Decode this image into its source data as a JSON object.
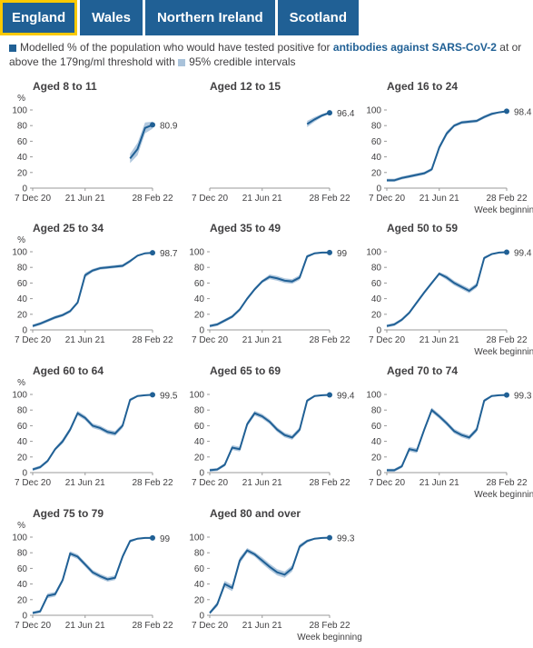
{
  "tabs": [
    "England",
    "Wales",
    "Northern Ireland",
    "Scotland"
  ],
  "legend": {
    "text1": "Modelled % of the population who would have tested positive for",
    "bold": "antibodies against SARS-CoV-2",
    "text2": "at or above the 179ng/ml threshold with",
    "band": "95% credible intervals"
  },
  "chart_data": [
    {
      "type": "line",
      "title": "Aged 8 to 11",
      "y_unit": "%",
      "x": [
        "7 Dec 20",
        "4 Jan 21",
        "1 Feb 21",
        "1 Mar 21",
        "29 Mar 21",
        "26 Apr 21",
        "24 May 21",
        "21 Jun 21",
        "19 Jul 21",
        "16 Aug 21",
        "13 Sep 21",
        "11 Oct 21",
        "8 Nov 21",
        "6 Dec 21",
        "3 Jan 22",
        "31 Jan 22",
        "28 Feb 22"
      ],
      "xticks": [
        "7 Dec 20",
        "21 Jun 21",
        "28 Feb 22"
      ],
      "values": [
        null,
        null,
        null,
        null,
        null,
        null,
        null,
        null,
        null,
        null,
        null,
        null,
        null,
        38,
        50,
        77,
        80.9
      ],
      "lower": [
        null,
        null,
        null,
        null,
        null,
        null,
        null,
        null,
        null,
        null,
        null,
        null,
        null,
        32,
        42,
        70,
        76
      ],
      "upper": [
        null,
        null,
        null,
        null,
        null,
        null,
        null,
        null,
        null,
        null,
        null,
        null,
        null,
        44,
        58,
        84,
        85
      ],
      "ylim": [
        0,
        100
      ],
      "yticks": [
        0,
        20,
        40,
        60,
        80,
        100
      ],
      "color": "#206095",
      "band_color": "#a9c2da"
    },
    {
      "type": "line",
      "title": "Aged 12 to 15",
      "x": [
        "7 Dec 20",
        "4 Jan 21",
        "1 Feb 21",
        "1 Mar 21",
        "29 Mar 21",
        "26 Apr 21",
        "24 May 21",
        "21 Jun 21",
        "19 Jul 21",
        "16 Aug 21",
        "13 Sep 21",
        "11 Oct 21",
        "8 Nov 21",
        "6 Dec 21",
        "3 Jan 22",
        "31 Jan 22",
        "28 Feb 22"
      ],
      "xticks": [
        "7 Dec 20",
        "21 Jun 21",
        "28 Feb 22"
      ],
      "values": [
        null,
        null,
        null,
        null,
        null,
        null,
        null,
        null,
        null,
        null,
        null,
        null,
        null,
        82,
        88,
        93,
        96.4
      ],
      "lower": [
        null,
        null,
        null,
        null,
        null,
        null,
        null,
        null,
        null,
        null,
        null,
        null,
        null,
        78,
        85,
        91,
        95
      ],
      "upper": [
        null,
        null,
        null,
        null,
        null,
        null,
        null,
        null,
        null,
        null,
        null,
        null,
        null,
        86,
        91,
        95,
        98
      ],
      "ylim": [
        0,
        100
      ],
      "color": "#206095",
      "band_color": "#a9c2da"
    },
    {
      "type": "line",
      "title": "Aged 16 to 24",
      "x_label": "Week beginning",
      "x": [
        "7 Dec 20",
        "4 Jan 21",
        "1 Feb 21",
        "1 Mar 21",
        "29 Mar 21",
        "26 Apr 21",
        "24 May 21",
        "21 Jun 21",
        "19 Jul 21",
        "16 Aug 21",
        "13 Sep 21",
        "11 Oct 21",
        "8 Nov 21",
        "6 Dec 21",
        "3 Jan 22",
        "31 Jan 22",
        "28 Feb 22"
      ],
      "xticks": [
        "7 Dec 20",
        "21 Jun 21",
        "28 Feb 22"
      ],
      "values": [
        10,
        10,
        13,
        15,
        17,
        19,
        24,
        52,
        70,
        80,
        84,
        85,
        86,
        91,
        95,
        97,
        98.4
      ],
      "lower": [
        8,
        8,
        11,
        13,
        15,
        17,
        22,
        49,
        67,
        78,
        82,
        83,
        84,
        89,
        93,
        96,
        97
      ],
      "upper": [
        12,
        12,
        15,
        17,
        19,
        21,
        26,
        55,
        73,
        82,
        86,
        87,
        88,
        93,
        97,
        98,
        99
      ],
      "ylim": [
        0,
        100
      ],
      "yticks": [
        0,
        20,
        40,
        60,
        80,
        100
      ],
      "color": "#206095",
      "band_color": "#a9c2da"
    },
    {
      "type": "line",
      "title": "Aged 25 to 34",
      "y_unit": "%",
      "x": [
        "7 Dec 20",
        "4 Jan 21",
        "1 Feb 21",
        "1 Mar 21",
        "29 Mar 21",
        "26 Apr 21",
        "24 May 21",
        "21 Jun 21",
        "19 Jul 21",
        "16 Aug 21",
        "13 Sep 21",
        "11 Oct 21",
        "8 Nov 21",
        "6 Dec 21",
        "3 Jan 22",
        "31 Jan 22",
        "28 Feb 22"
      ],
      "xticks": [
        "7 Dec 20",
        "21 Jun 21",
        "28 Feb 22"
      ],
      "values": [
        5,
        8,
        12,
        16,
        19,
        24,
        35,
        70,
        76,
        79,
        80,
        81,
        82,
        88,
        95,
        98,
        98.7
      ],
      "lower": [
        3,
        6,
        10,
        14,
        17,
        22,
        33,
        67,
        74,
        77,
        78,
        79,
        80,
        86,
        94,
        97,
        98
      ],
      "upper": [
        7,
        10,
        14,
        18,
        21,
        26,
        37,
        73,
        78,
        81,
        82,
        83,
        84,
        90,
        96,
        99,
        99
      ],
      "ylim": [
        0,
        100
      ],
      "yticks": [
        0,
        20,
        40,
        60,
        80,
        100
      ],
      "color": "#206095",
      "band_color": "#a9c2da"
    },
    {
      "type": "line",
      "title": "Aged 35 to 49",
      "x": [
        "7 Dec 20",
        "4 Jan 21",
        "1 Feb 21",
        "1 Mar 21",
        "29 Mar 21",
        "26 Apr 21",
        "24 May 21",
        "21 Jun 21",
        "19 Jul 21",
        "16 Aug 21",
        "13 Sep 21",
        "11 Oct 21",
        "8 Nov 21",
        "6 Dec 21",
        "3 Jan 22",
        "31 Jan 22",
        "28 Feb 22"
      ],
      "xticks": [
        "7 Dec 20",
        "21 Jun 21",
        "28 Feb 22"
      ],
      "values": [
        5,
        7,
        12,
        17,
        26,
        40,
        52,
        62,
        68,
        66,
        63,
        62,
        67,
        94,
        98,
        99,
        99.0
      ],
      "lower": [
        3,
        5,
        10,
        15,
        24,
        38,
        50,
        60,
        65,
        63,
        60,
        59,
        64,
        92,
        97,
        98,
        98
      ],
      "upper": [
        7,
        9,
        14,
        19,
        28,
        42,
        54,
        64,
        71,
        69,
        66,
        65,
        70,
        96,
        99,
        100,
        100
      ],
      "ylim": [
        0,
        100
      ],
      "yticks": [
        0,
        20,
        40,
        60,
        80,
        100
      ],
      "color": "#206095",
      "band_color": "#a9c2da"
    },
    {
      "type": "line",
      "title": "Aged 50 to 59",
      "x_label": "Week beginning",
      "x": [
        "7 Dec 20",
        "4 Jan 21",
        "1 Feb 21",
        "1 Mar 21",
        "29 Mar 21",
        "26 Apr 21",
        "24 May 21",
        "21 Jun 21",
        "19 Jul 21",
        "16 Aug 21",
        "13 Sep 21",
        "11 Oct 21",
        "8 Nov 21",
        "6 Dec 21",
        "3 Jan 22",
        "31 Jan 22",
        "28 Feb 22"
      ],
      "xticks": [
        "7 Dec 20",
        "21 Jun 21",
        "28 Feb 22"
      ],
      "values": [
        5,
        7,
        13,
        22,
        35,
        48,
        60,
        72,
        67,
        60,
        55,
        50,
        57,
        92,
        97,
        99,
        99.4
      ],
      "lower": [
        3,
        5,
        11,
        20,
        33,
        46,
        58,
        70,
        64,
        57,
        52,
        47,
        54,
        90,
        96,
        98,
        99
      ],
      "upper": [
        7,
        9,
        15,
        24,
        37,
        50,
        62,
        74,
        70,
        63,
        58,
        53,
        60,
        94,
        98,
        100,
        100
      ],
      "ylim": [
        0,
        100
      ],
      "yticks": [
        0,
        20,
        40,
        60,
        80,
        100
      ],
      "color": "#206095",
      "band_color": "#a9c2da"
    },
    {
      "type": "line",
      "title": "Aged 60 to 64",
      "y_unit": "%",
      "x": [
        "7 Dec 20",
        "4 Jan 21",
        "1 Feb 21",
        "1 Mar 21",
        "29 Mar 21",
        "26 Apr 21",
        "24 May 21",
        "21 Jun 21",
        "19 Jul 21",
        "16 Aug 21",
        "13 Sep 21",
        "11 Oct 21",
        "8 Nov 21",
        "6 Dec 21",
        "3 Jan 22",
        "31 Jan 22",
        "28 Feb 22"
      ],
      "xticks": [
        "7 Dec 20",
        "21 Jun 21",
        "28 Feb 22"
      ],
      "values": [
        4,
        7,
        15,
        30,
        40,
        55,
        76,
        70,
        60,
        57,
        52,
        50,
        60,
        93,
        98,
        99,
        99.5
      ],
      "lower": [
        2,
        5,
        13,
        28,
        37,
        52,
        73,
        67,
        57,
        54,
        49,
        47,
        57,
        91,
        97,
        98,
        99
      ],
      "upper": [
        6,
        9,
        17,
        32,
        43,
        58,
        79,
        73,
        63,
        60,
        55,
        53,
        63,
        95,
        99,
        100,
        100
      ],
      "ylim": [
        0,
        100
      ],
      "yticks": [
        0,
        20,
        40,
        60,
        80,
        100
      ],
      "color": "#206095",
      "band_color": "#a9c2da"
    },
    {
      "type": "line",
      "title": "Aged 65 to 69",
      "x": [
        "7 Dec 20",
        "4 Jan 21",
        "1 Feb 21",
        "1 Mar 21",
        "29 Mar 21",
        "26 Apr 21",
        "24 May 21",
        "21 Jun 21",
        "19 Jul 21",
        "16 Aug 21",
        "13 Sep 21",
        "11 Oct 21",
        "8 Nov 21",
        "6 Dec 21",
        "3 Jan 22",
        "31 Jan 22",
        "28 Feb 22"
      ],
      "xticks": [
        "7 Dec 20",
        "21 Jun 21",
        "28 Feb 22"
      ],
      "values": [
        3,
        4,
        10,
        32,
        30,
        62,
        76,
        72,
        65,
        55,
        48,
        45,
        55,
        92,
        98,
        99,
        99.4
      ],
      "lower": [
        1,
        2,
        8,
        29,
        27,
        59,
        73,
        69,
        62,
        52,
        45,
        42,
        52,
        90,
        97,
        98,
        99
      ],
      "upper": [
        5,
        6,
        12,
        35,
        33,
        65,
        79,
        75,
        68,
        58,
        51,
        48,
        58,
        94,
        99,
        100,
        100
      ],
      "ylim": [
        0,
        100
      ],
      "yticks": [
        0,
        20,
        40,
        60,
        80,
        100
      ],
      "color": "#206095",
      "band_color": "#a9c2da"
    },
    {
      "type": "line",
      "title": "Aged 70 to 74",
      "x_label": "Week beginning",
      "x": [
        "7 Dec 20",
        "4 Jan 21",
        "1 Feb 21",
        "1 Mar 21",
        "29 Mar 21",
        "26 Apr 21",
        "24 May 21",
        "21 Jun 21",
        "19 Jul 21",
        "16 Aug 21",
        "13 Sep 21",
        "11 Oct 21",
        "8 Nov 21",
        "6 Dec 21",
        "3 Jan 22",
        "31 Jan 22",
        "28 Feb 22"
      ],
      "xticks": [
        "7 Dec 20",
        "21 Jun 21",
        "28 Feb 22"
      ],
      "values": [
        3,
        3,
        8,
        30,
        28,
        55,
        80,
        72,
        63,
        53,
        48,
        45,
        55,
        92,
        98,
        99,
        99.3
      ],
      "lower": [
        1,
        1,
        6,
        27,
        25,
        52,
        77,
        69,
        60,
        50,
        45,
        42,
        52,
        90,
        97,
        98,
        99
      ],
      "upper": [
        5,
        5,
        10,
        33,
        31,
        58,
        83,
        75,
        66,
        56,
        51,
        48,
        58,
        94,
        99,
        100,
        100
      ],
      "ylim": [
        0,
        100
      ],
      "yticks": [
        0,
        20,
        40,
        60,
        80,
        100
      ],
      "color": "#206095",
      "band_color": "#a9c2da"
    },
    {
      "type": "line",
      "title": "Aged 75 to 79",
      "y_unit": "%",
      "x": [
        "7 Dec 20",
        "4 Jan 21",
        "1 Feb 21",
        "1 Mar 21",
        "29 Mar 21",
        "26 Apr 21",
        "24 May 21",
        "21 Jun 21",
        "19 Jul 21",
        "16 Aug 21",
        "13 Sep 21",
        "11 Oct 21",
        "8 Nov 21",
        "6 Dec 21",
        "3 Jan 22",
        "31 Jan 22",
        "28 Feb 22"
      ],
      "xticks": [
        "7 Dec 20",
        "21 Jun 21",
        "28 Feb 22"
      ],
      "values": [
        3,
        5,
        25,
        27,
        45,
        79,
        75,
        65,
        55,
        50,
        46,
        48,
        75,
        95,
        98,
        99,
        99.0
      ],
      "lower": [
        1,
        3,
        22,
        24,
        42,
        76,
        72,
        62,
        52,
        47,
        43,
        45,
        72,
        93,
        97,
        98,
        98
      ],
      "upper": [
        5,
        7,
        28,
        30,
        48,
        82,
        78,
        68,
        58,
        53,
        49,
        51,
        78,
        97,
        99,
        100,
        100
      ],
      "ylim": [
        0,
        100
      ],
      "yticks": [
        0,
        20,
        40,
        60,
        80,
        100
      ],
      "color": "#206095",
      "band_color": "#a9c2da"
    },
    {
      "type": "line",
      "title": "Aged 80 and over",
      "x_label": "Week beginning",
      "x": [
        "7 Dec 20",
        "4 Jan 21",
        "1 Feb 21",
        "1 Mar 21",
        "29 Mar 21",
        "26 Apr 21",
        "24 May 21",
        "21 Jun 21",
        "19 Jul 21",
        "16 Aug 21",
        "13 Sep 21",
        "11 Oct 21",
        "8 Nov 21",
        "6 Dec 21",
        "3 Jan 22",
        "31 Jan 22",
        "28 Feb 22"
      ],
      "xticks": [
        "7 Dec 20",
        "21 Jun 21",
        "28 Feb 22"
      ],
      "values": [
        3,
        14,
        40,
        35,
        70,
        83,
        78,
        70,
        62,
        55,
        52,
        60,
        88,
        95,
        98,
        99,
        99.3
      ],
      "lower": [
        1,
        11,
        36,
        31,
        66,
        80,
        75,
        66,
        58,
        51,
        48,
        56,
        85,
        93,
        97,
        98,
        99
      ],
      "upper": [
        5,
        17,
        44,
        39,
        74,
        86,
        81,
        74,
        66,
        59,
        56,
        64,
        91,
        97,
        99,
        100,
        100
      ],
      "ylim": [
        0,
        100
      ],
      "yticks": [
        0,
        20,
        40,
        60,
        80,
        100
      ],
      "color": "#206095",
      "band_color": "#a9c2da"
    }
  ]
}
